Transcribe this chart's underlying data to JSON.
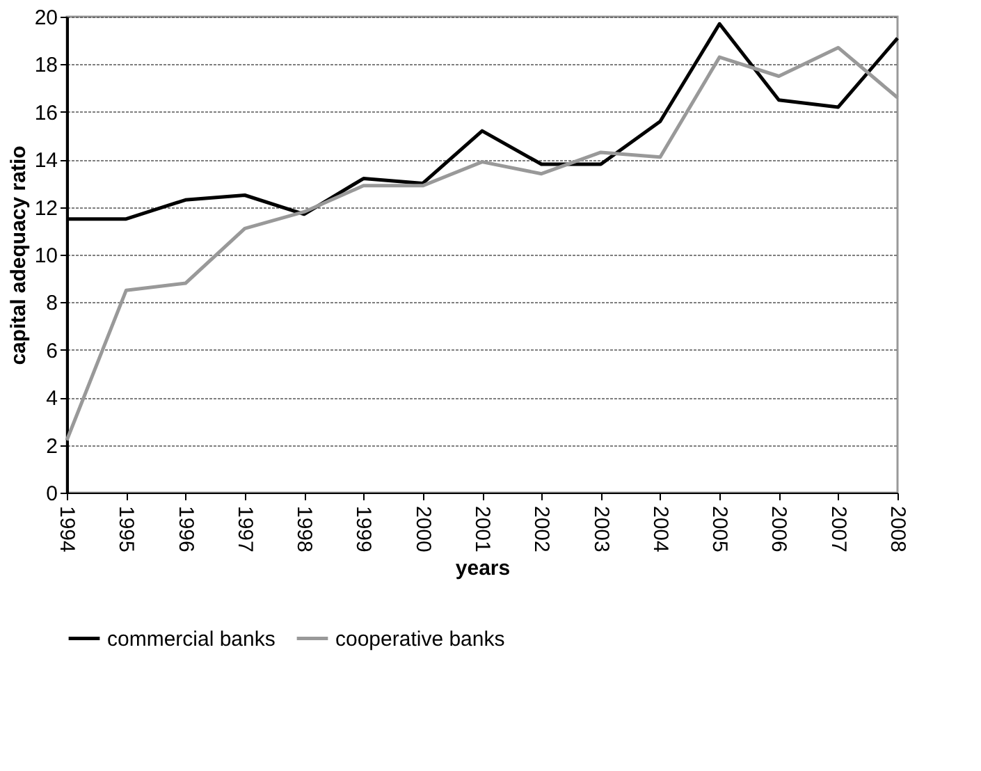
{
  "chart_data": {
    "type": "line",
    "xlabel": "years",
    "ylabel": "capital adequacy ratio",
    "categories": [
      "1994",
      "1995",
      "1996",
      "1997",
      "1998",
      "1999",
      "2000",
      "2001",
      "2002",
      "2003",
      "2004",
      "2005",
      "2006",
      "2007",
      "2008"
    ],
    "series": [
      {
        "name": "commercial banks",
        "color": "#000000",
        "values": [
          11.5,
          11.5,
          12.3,
          12.5,
          11.7,
          13.2,
          13.0,
          15.2,
          13.8,
          13.8,
          15.6,
          19.7,
          16.5,
          16.2,
          19.1
        ]
      },
      {
        "name": "cooperative banks",
        "color": "#999999",
        "values": [
          2.2,
          8.5,
          8.8,
          11.1,
          11.8,
          12.9,
          12.9,
          13.9,
          13.4,
          14.3,
          14.1,
          18.3,
          17.5,
          18.7,
          16.6
        ]
      }
    ],
    "ylim": [
      0,
      20
    ],
    "yticks": [
      0,
      2,
      4,
      6,
      8,
      10,
      12,
      14,
      16,
      18,
      20
    ],
    "grid": "y",
    "legend": "bottom",
    "marker": "none",
    "line_style": "solid"
  }
}
